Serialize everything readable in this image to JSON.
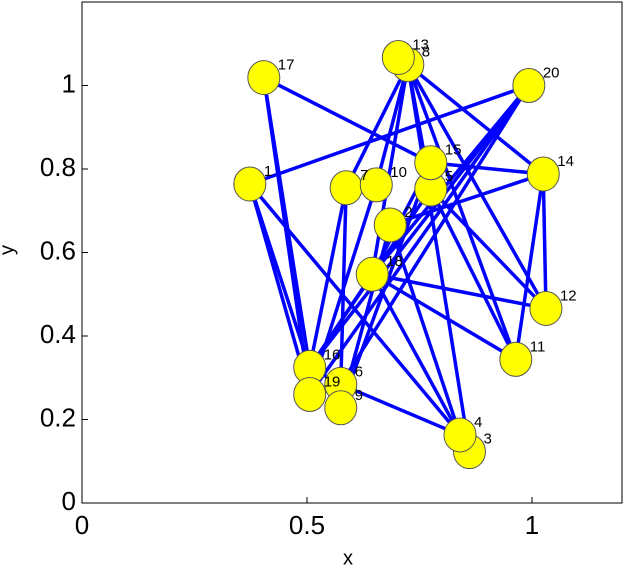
{
  "chart_data": {
    "type": "network",
    "xlabel": "x",
    "ylabel": "y",
    "xlim": [
      0,
      1.2
    ],
    "ylim": [
      0,
      1.2
    ],
    "xticks": [
      0,
      0.5,
      1
    ],
    "yticks": [
      0,
      0.2,
      0.4,
      0.6,
      0.8,
      1
    ],
    "node_color": "#ffff00",
    "edge_color": "#0000ff",
    "nodes": [
      {
        "label": "1",
        "x": 0.373,
        "y": 0.764
      },
      {
        "label": "2",
        "x": 0.685,
        "y": 0.666
      },
      {
        "label": "3",
        "x": 0.861,
        "y": 0.123
      },
      {
        "label": "4",
        "x": 0.84,
        "y": 0.163
      },
      {
        "label": "5",
        "x": 0.775,
        "y": 0.752
      },
      {
        "label": "6",
        "x": 0.575,
        "y": 0.284
      },
      {
        "label": "7",
        "x": 0.587,
        "y": 0.755
      },
      {
        "label": "8",
        "x": 0.724,
        "y": 1.05
      },
      {
        "label": "9",
        "x": 0.575,
        "y": 0.228
      },
      {
        "label": "10",
        "x": 0.654,
        "y": 0.762
      },
      {
        "label": "11",
        "x": 0.964,
        "y": 0.344
      },
      {
        "label": "12",
        "x": 1.031,
        "y": 0.466
      },
      {
        "label": "13",
        "x": 0.703,
        "y": 1.067
      },
      {
        "label": "14",
        "x": 1.025,
        "y": 0.788
      },
      {
        "label": "15",
        "x": 0.775,
        "y": 0.815
      },
      {
        "label": "16",
        "x": 0.506,
        "y": 0.325
      },
      {
        "label": "17",
        "x": 0.404,
        "y": 1.019
      },
      {
        "label": "18",
        "x": 0.645,
        "y": 0.548
      },
      {
        "label": "19",
        "x": 0.506,
        "y": 0.26
      },
      {
        "label": "20",
        "x": 0.993,
        "y": 1.0
      }
    ],
    "edges": [
      [
        "17",
        "16"
      ],
      [
        "17",
        "19"
      ],
      [
        "17",
        "15"
      ],
      [
        "1",
        "20"
      ],
      [
        "1",
        "16"
      ],
      [
        "1",
        "19"
      ],
      [
        "1",
        "4"
      ],
      [
        "8",
        "7"
      ],
      [
        "8",
        "10"
      ],
      [
        "8",
        "18"
      ],
      [
        "8",
        "14"
      ],
      [
        "8",
        "12"
      ],
      [
        "8",
        "11"
      ],
      [
        "8",
        "5"
      ],
      [
        "8",
        "3"
      ],
      [
        "20",
        "16"
      ],
      [
        "20",
        "19"
      ],
      [
        "20",
        "18"
      ],
      [
        "20",
        "6"
      ],
      [
        "15",
        "14"
      ],
      [
        "15",
        "18"
      ],
      [
        "15",
        "9"
      ],
      [
        "14",
        "12"
      ],
      [
        "14",
        "11"
      ],
      [
        "14",
        "2"
      ],
      [
        "7",
        "6"
      ],
      [
        "7",
        "16"
      ],
      [
        "10",
        "19"
      ],
      [
        "5",
        "11"
      ],
      [
        "5",
        "12"
      ],
      [
        "5",
        "16"
      ],
      [
        "2",
        "9"
      ],
      [
        "2",
        "4"
      ],
      [
        "18",
        "12"
      ],
      [
        "18",
        "11"
      ],
      [
        "18",
        "16"
      ],
      [
        "18",
        "4"
      ],
      [
        "16",
        "6"
      ],
      [
        "6",
        "4"
      ]
    ]
  }
}
